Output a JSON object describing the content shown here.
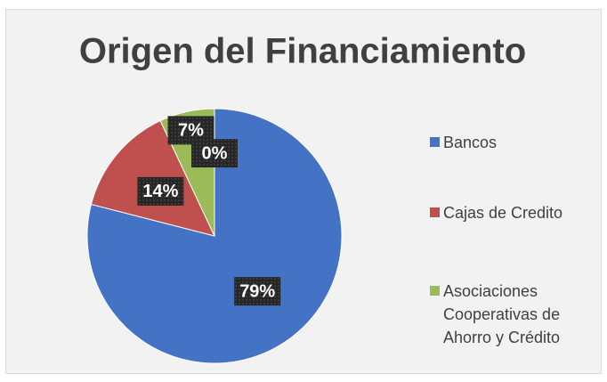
{
  "chart_data": {
    "type": "pie",
    "title": "Origen del Financiamiento",
    "categories": [
      "Bancos",
      "Cajas de Credito",
      "Asociaciones Cooperativas de Ahorro y Crédito",
      null
    ],
    "values": [
      79,
      14,
      7,
      0
    ],
    "value_labels": [
      "79%",
      "14%",
      "7%",
      "0%"
    ],
    "colors": [
      "#4472c4",
      "#c0504d",
      "#9bbb59",
      "#8064a2"
    ],
    "legend": "right"
  }
}
